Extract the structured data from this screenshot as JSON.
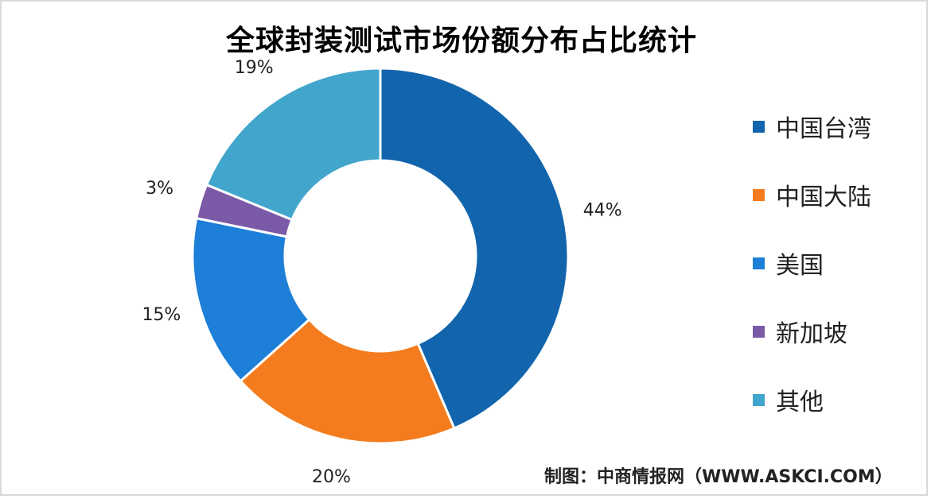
{
  "chart_data": {
    "type": "pie",
    "title": "全球封装测试市场份额分布占比统计",
    "categories": [
      "中国台湾",
      "中国大陆",
      "美国",
      "新加坡",
      "其他"
    ],
    "values": [
      44,
      20,
      15,
      3,
      19
    ],
    "data_labels": [
      "44%",
      "20%",
      "15%",
      "3%",
      "19%"
    ],
    "colors": [
      "#1265ad",
      "#f47c1e",
      "#1d7fd8",
      "#7a5aa7",
      "#42a5cc"
    ],
    "donut": true,
    "legend_position": "right"
  },
  "source_note": "制图：中商情报网（WWW.ASKCI.COM）"
}
